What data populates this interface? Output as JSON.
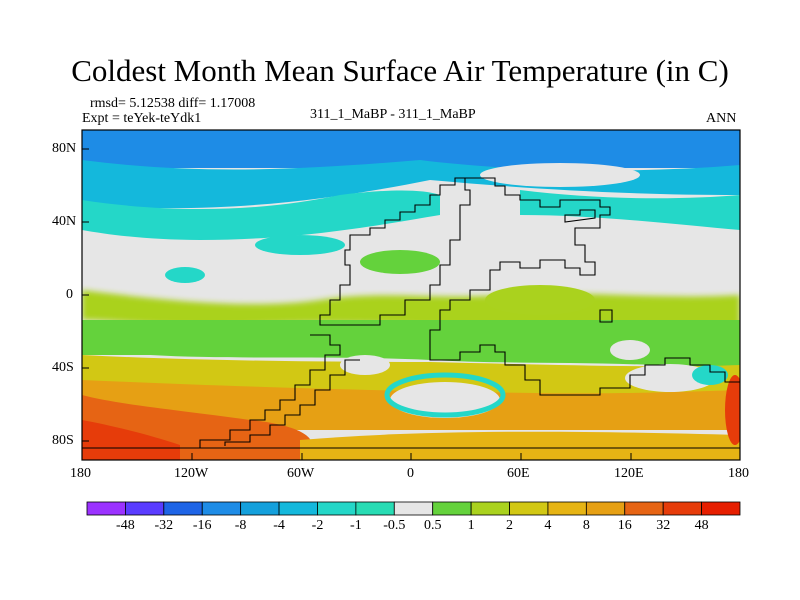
{
  "title": "Coldest Month Mean Surface Air Temperature (in C)",
  "stats": {
    "rmsd": "rmsd= 5.12538 diff= 1.17008",
    "expt": "Expt = teYek-teYdk1"
  },
  "subtitle": "311_1_MaBP - 311_1_MaBP",
  "season": "ANN",
  "map": {
    "projection": "equirectangular",
    "lon_range": [
      -180,
      180
    ],
    "lat_range": [
      -90,
      90
    ],
    "xticks": [
      "180",
      "120W",
      "60W",
      "0",
      "60E",
      "120E",
      "180"
    ],
    "yticks": [
      "80N",
      "40N",
      "0",
      "40S",
      "80S"
    ],
    "colors": {
      "ocean_polar": "#1e8ce6",
      "cold_mid": "#14b8dc",
      "cool": "#24d7c8",
      "neutral": "#e6e6e6",
      "warm1": "#64d23c",
      "warm2": "#aad21e",
      "warm3": "#d2c814",
      "warm4": "#e6a014",
      "hot": "#e66414",
      "hottest": "#e63c0a"
    }
  },
  "colorbar": {
    "labels": [
      "-48",
      "-32",
      "-16",
      "-8",
      "-4",
      "-2",
      "-1",
      "-0.5",
      "0.5",
      "1",
      "2",
      "4",
      "8",
      "16",
      "32",
      "48"
    ],
    "colors": [
      "#9b32ff",
      "#5a3cff",
      "#1e64e6",
      "#1e8ce6",
      "#14a0dc",
      "#14b8dc",
      "#24d7c8",
      "#28dcb4",
      "#e6e6e6",
      "#64d23c",
      "#aad21e",
      "#d2c814",
      "#e6b414",
      "#e6a014",
      "#e66414",
      "#e63c0a",
      "#e61e00"
    ]
  }
}
